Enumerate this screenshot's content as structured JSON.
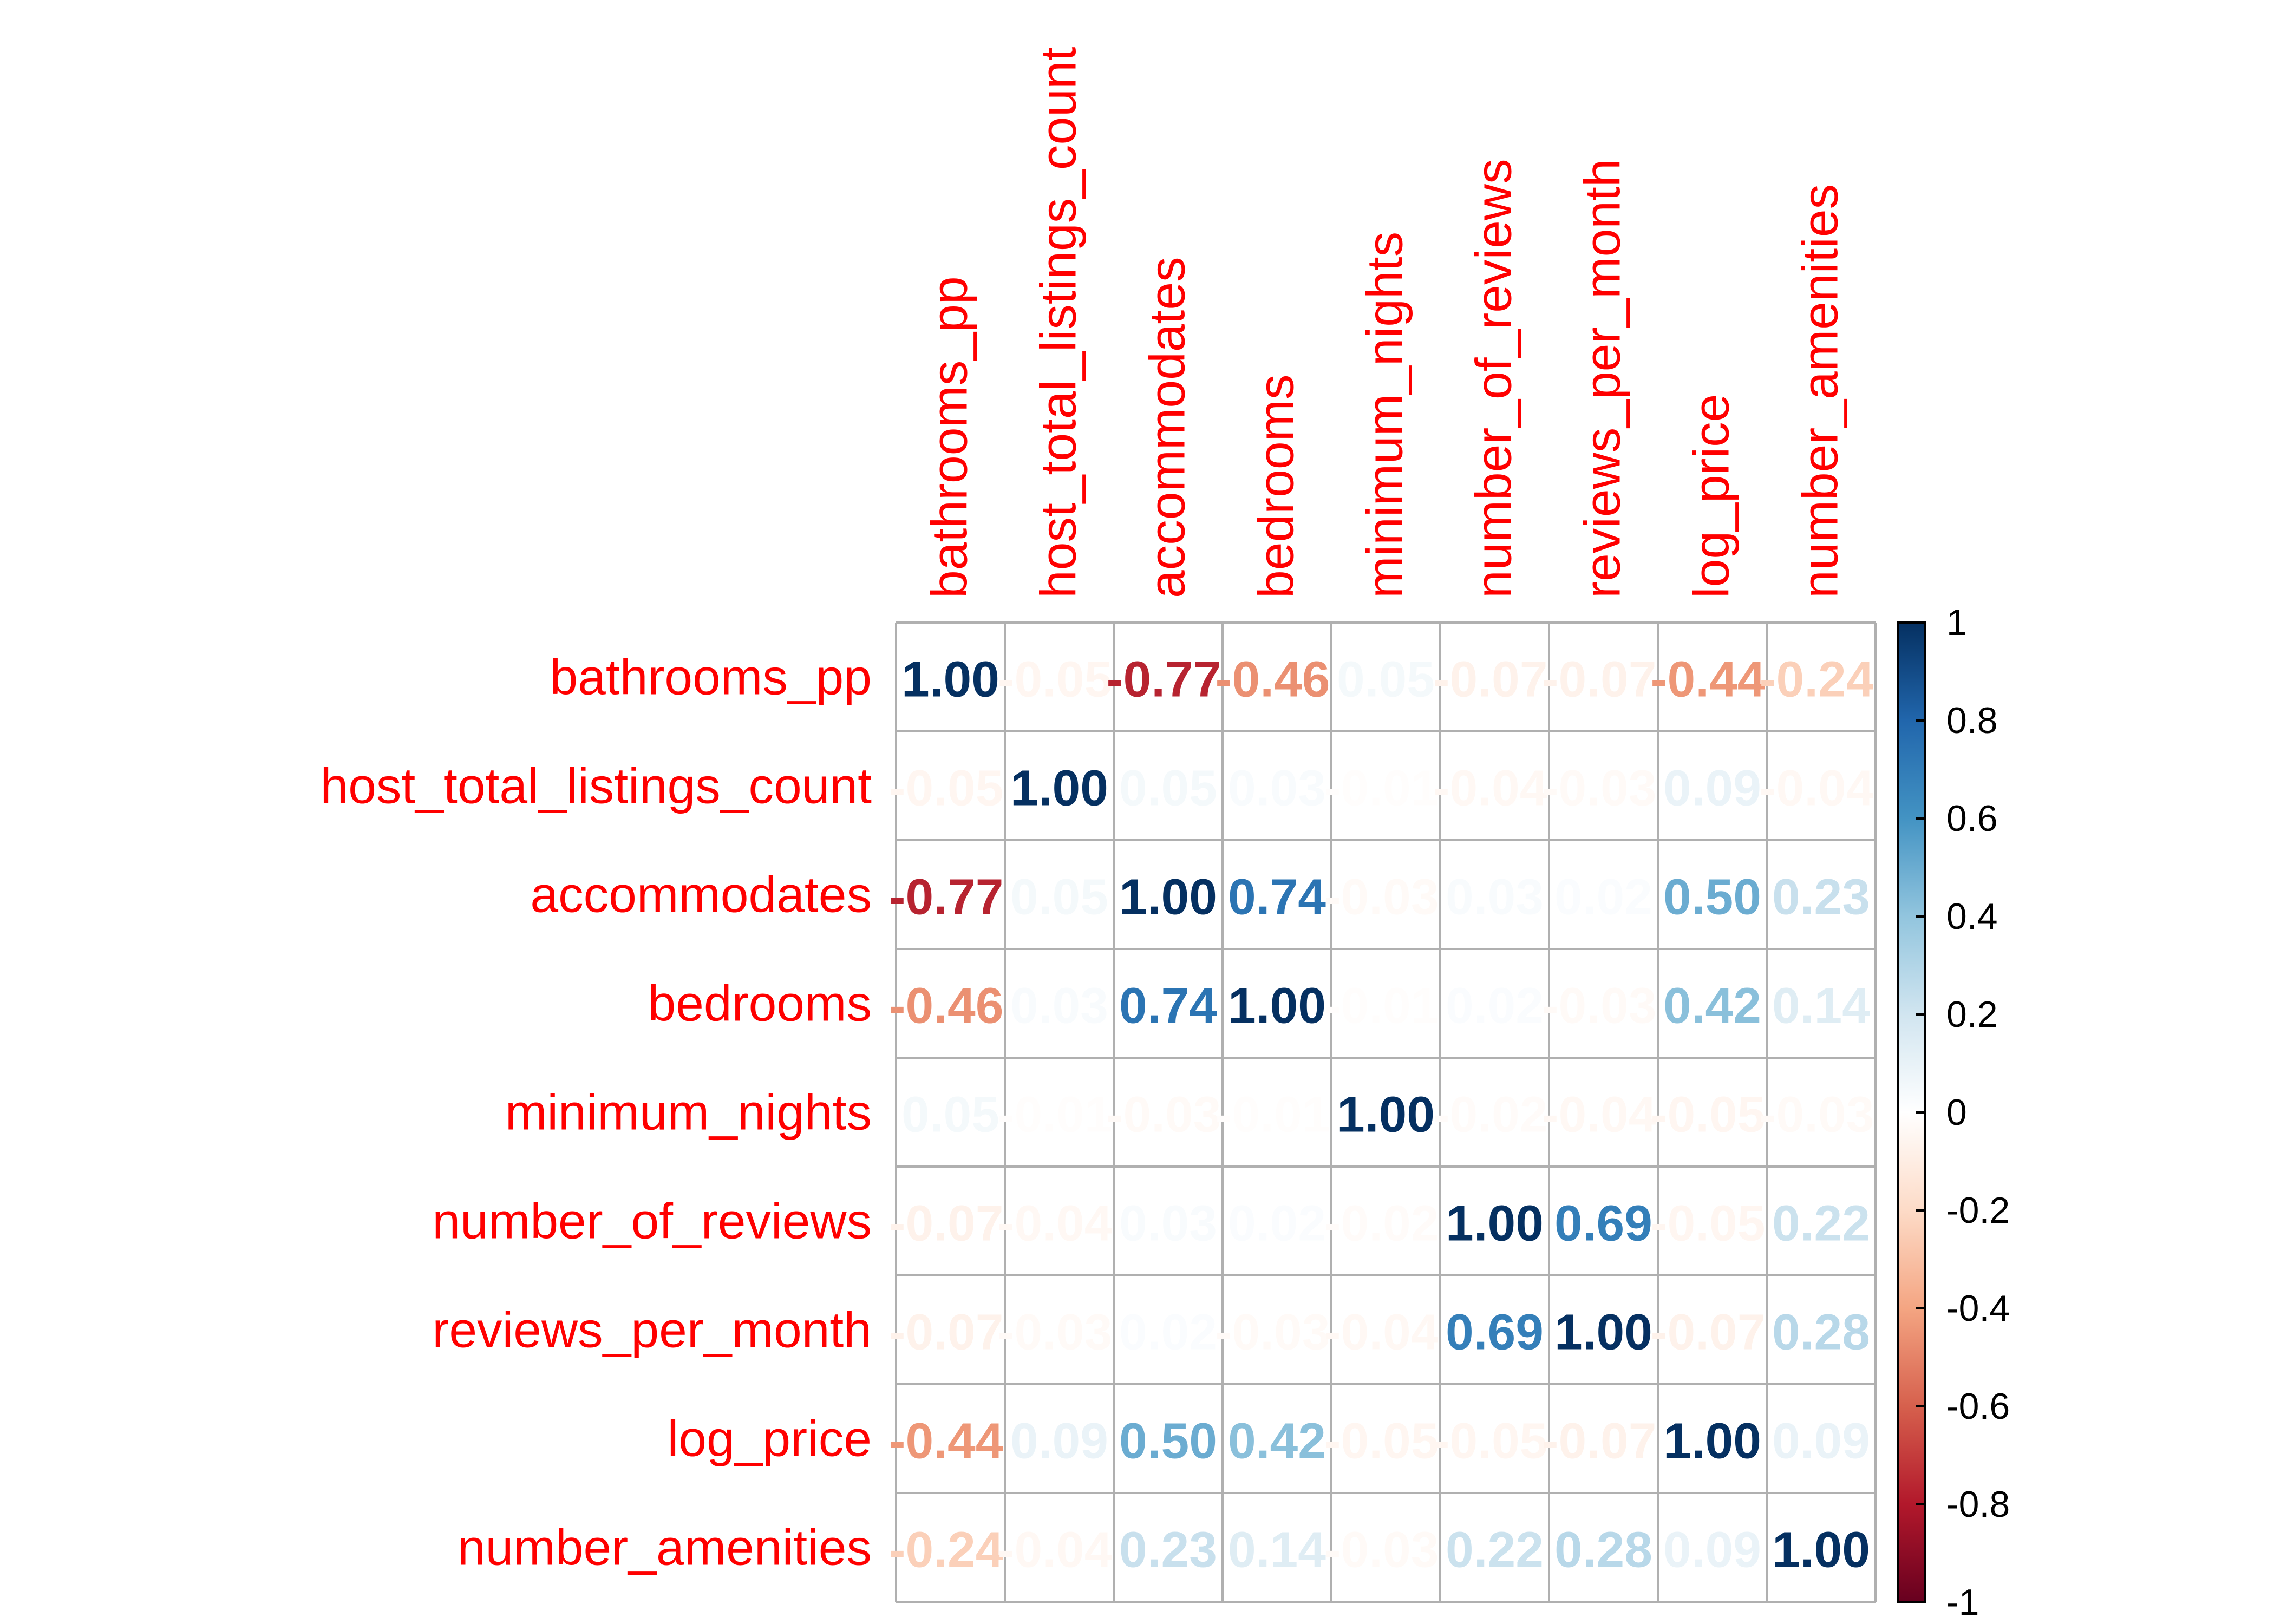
{
  "chart_data": {
    "type": "heatmap",
    "variables": [
      "bathrooms_pp",
      "host_total_listings_count",
      "accommodates",
      "bedrooms",
      "minimum_nights",
      "number_of_reviews",
      "reviews_per_month",
      "log_price",
      "number_amenities"
    ],
    "matrix": [
      [
        1.0,
        -0.05,
        -0.77,
        -0.46,
        0.05,
        -0.07,
        -0.07,
        -0.44,
        -0.24
      ],
      [
        -0.05,
        1.0,
        0.05,
        0.03,
        -0.01,
        -0.04,
        -0.03,
        0.09,
        -0.04
      ],
      [
        -0.77,
        0.05,
        1.0,
        0.74,
        -0.03,
        0.03,
        0.02,
        0.5,
        0.23
      ],
      [
        -0.46,
        0.03,
        0.74,
        1.0,
        -0.01,
        0.02,
        -0.03,
        0.42,
        0.14
      ],
      [
        0.05,
        -0.01,
        -0.03,
        -0.01,
        1.0,
        -0.02,
        -0.04,
        -0.05,
        -0.03
      ],
      [
        -0.07,
        -0.04,
        0.03,
        0.02,
        -0.02,
        1.0,
        0.69,
        -0.05,
        0.22
      ],
      [
        -0.07,
        -0.03,
        0.02,
        -0.03,
        -0.04,
        0.69,
        1.0,
        -0.07,
        0.28
      ],
      [
        -0.44,
        0.09,
        0.5,
        0.42,
        -0.05,
        -0.05,
        -0.07,
        1.0,
        0.09
      ],
      [
        -0.24,
        -0.04,
        0.23,
        0.14,
        -0.03,
        0.22,
        0.28,
        0.09,
        1.0
      ]
    ],
    "number_format": "0.00",
    "colorbar": {
      "range": [
        -1,
        1
      ],
      "ticks": [
        "1",
        "0.8",
        "0.6",
        "0.4",
        "0.2",
        "0",
        "-0.2",
        "-0.4",
        "-0.6",
        "-0.8",
        "-1"
      ]
    },
    "colors": {
      "label": "#ff0000",
      "grid": "#b0b0b0",
      "palette": [
        "#67001F",
        "#B2182B",
        "#D6604D",
        "#F4A582",
        "#FDDBC7",
        "#FFFFFF",
        "#D1E5F0",
        "#92C5DE",
        "#4393C3",
        "#2166AC",
        "#053061"
      ]
    }
  }
}
